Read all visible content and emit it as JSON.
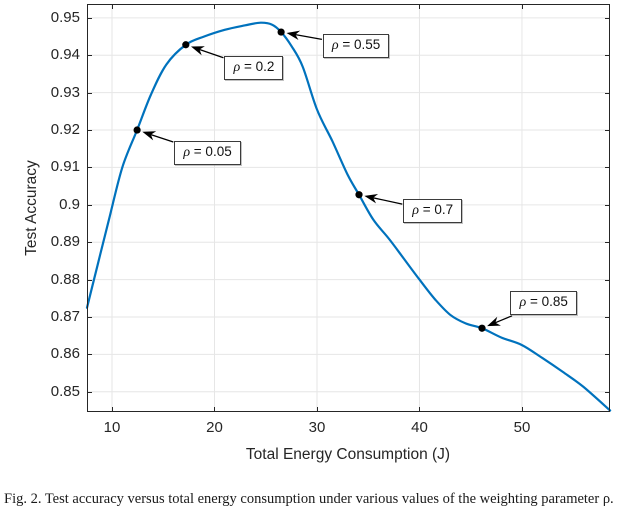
{
  "figure": {
    "caption": "Fig. 2. Test accuracy versus total energy consumption under various values of the weighting parameter ρ."
  },
  "chart_data": {
    "type": "line",
    "title": "",
    "xlabel": "Total Energy Consumption (J)",
    "ylabel": "Test Accuracy",
    "xlim": [
      7.56,
      58.59
    ],
    "ylim": [
      0.8446,
      0.9537
    ],
    "grid": true,
    "legend": null,
    "xticks": [
      {
        "v": 10,
        "label": "10"
      },
      {
        "v": 20,
        "label": "20"
      },
      {
        "v": 30,
        "label": "30"
      },
      {
        "v": 40,
        "label": "40"
      },
      {
        "v": 50,
        "label": "50"
      }
    ],
    "yticks": [
      {
        "v": 0.85,
        "label": "0.85"
      },
      {
        "v": 0.86,
        "label": "0.86"
      },
      {
        "v": 0.87,
        "label": "0.87"
      },
      {
        "v": 0.88,
        "label": "0.88"
      },
      {
        "v": 0.89,
        "label": "0.89"
      },
      {
        "v": 0.9,
        "label": "0.9"
      },
      {
        "v": 0.91,
        "label": "0.91"
      },
      {
        "v": 0.92,
        "label": "0.92"
      },
      {
        "v": 0.93,
        "label": "0.93"
      },
      {
        "v": 0.94,
        "label": "0.94"
      },
      {
        "v": 0.95,
        "label": "0.95"
      }
    ],
    "colors": {
      "line": "#0072BD",
      "marker": "#000000",
      "arrow": "#000000",
      "grid": "#e6e6e6",
      "axis": "#262626",
      "text": "#262626"
    },
    "series": [
      {
        "name": "test-accuracy-vs-energy",
        "x": [
          7.56,
          8.6,
          9.7,
          11.0,
          12.45,
          13.8,
          15.3,
          17.2,
          19,
          21,
          23,
          24.5,
          25.6,
          26.5,
          27.5,
          28.6,
          30,
          31.5,
          33,
          34.1,
          35.5,
          37,
          38.5,
          40,
          41.5,
          43,
          44.5,
          46.1,
          48,
          50,
          52,
          54,
          56,
          58.6
        ],
        "y": [
          0.8725,
          0.884,
          0.896,
          0.91,
          0.92,
          0.9295,
          0.9375,
          0.9428,
          0.945,
          0.9468,
          0.948,
          0.9487,
          0.9482,
          0.9462,
          0.9425,
          0.937,
          0.9255,
          0.917,
          0.908,
          0.9027,
          0.896,
          0.891,
          0.8855,
          0.88,
          0.8748,
          0.8706,
          0.8683,
          0.867,
          0.8645,
          0.8625,
          0.859,
          0.8553,
          0.8513,
          0.845
        ]
      }
    ],
    "annotations": [
      {
        "symbol": "ρ",
        "eq": " = 0.05",
        "text": "ρ = 0.05",
        "point_x": 12.45,
        "point_y": 0.92,
        "label_x": 19.3,
        "label_y": 0.9138
      },
      {
        "symbol": "ρ",
        "eq": " = 0.2",
        "text": "ρ = 0.2",
        "point_x": 17.2,
        "point_y": 0.9428,
        "label_x": 23.85,
        "label_y": 0.9365
      },
      {
        "symbol": "ρ",
        "eq": " = 0.55",
        "text": "ρ = 0.55",
        "point_x": 26.5,
        "point_y": 0.9462,
        "label_x": 33.8,
        "label_y": 0.9426
      },
      {
        "symbol": "ρ",
        "eq": " = 0.7",
        "text": "ρ = 0.7",
        "point_x": 34.1,
        "point_y": 0.9027,
        "label_x": 41.3,
        "label_y": 0.8984
      },
      {
        "symbol": "ρ",
        "eq": " = 0.85",
        "text": "ρ = 0.85",
        "point_x": 46.1,
        "point_y": 0.867,
        "label_x": 52.1,
        "label_y": 0.8738
      }
    ]
  }
}
